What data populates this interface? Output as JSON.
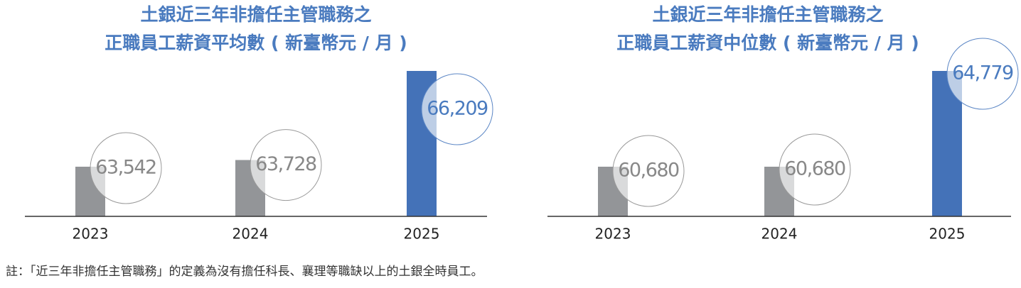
{
  "chart_data": [
    {
      "type": "bar",
      "title": [
        "土銀近三年非擔任主管職務之",
        "正職員工薪資平均數 ( 新臺幣元 / 月 )"
      ],
      "categories": [
        "2023",
        "2024",
        "2025"
      ],
      "values": [
        63542,
        63728,
        66209
      ],
      "value_labels": [
        "63,542",
        "63,728",
        "66,209"
      ],
      "colors": [
        "#939598",
        "#939598",
        "#4472b8"
      ]
    },
    {
      "type": "bar",
      "title": [
        "土銀近三年非擔任主管職務之",
        "正職員工薪資中位數 ( 新臺幣元 / 月 )"
      ],
      "categories": [
        "2023",
        "2024",
        "2025"
      ],
      "values": [
        60680,
        60680,
        64779
      ],
      "value_labels": [
        "60,680",
        "60,680",
        "64,779"
      ],
      "colors": [
        "#939598",
        "#939598",
        "#4472b8"
      ]
    }
  ],
  "note": "註：「近三年非擔任主管職務」的定義為沒有擔任科長、襄理等職缺以上的土銀全時員工。"
}
